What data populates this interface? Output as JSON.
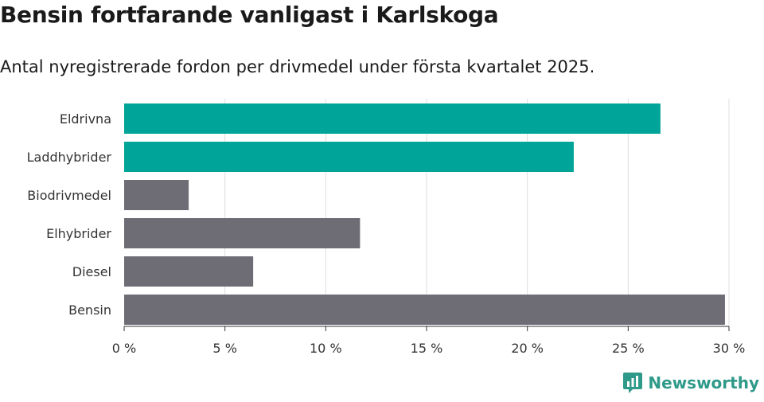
{
  "title": "Bensin fortfarande vanligast i Karlskoga",
  "subtitle": "Antal nyregistrerade fordon per drivmedel under första kvartalet 2025.",
  "brand": "Newsworthy",
  "colors": {
    "highlight": "#00a498",
    "default": "#6e6d76",
    "grid": "#dddddd",
    "axis": "#333333"
  },
  "chart_data": {
    "type": "bar",
    "orientation": "horizontal",
    "categories": [
      "Eldrivna",
      "Laddhybrider",
      "Biodrivmedel",
      "Elhybrider",
      "Diesel",
      "Bensin"
    ],
    "values": [
      26.6,
      22.3,
      3.2,
      11.7,
      6.4,
      29.8
    ],
    "highlighted": [
      true,
      true,
      false,
      false,
      false,
      false
    ],
    "xlim": [
      0,
      30
    ],
    "xticks": [
      0,
      5,
      10,
      15,
      20,
      25,
      30
    ],
    "xtick_labels": [
      "0 %",
      "5 %",
      "10 %",
      "15 %",
      "20 %",
      "25 %",
      "30 %"
    ],
    "grid": true
  }
}
